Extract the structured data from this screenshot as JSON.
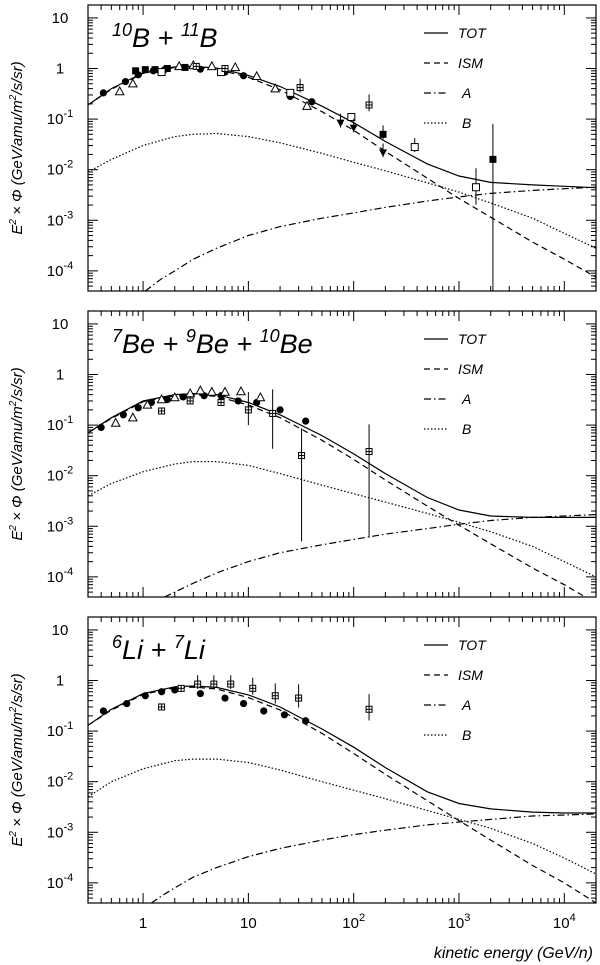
{
  "chart_data": {
    "type": "line",
    "shared_xlabel": "kinetic energy (GeV/n)",
    "xscale": "log",
    "yscale": "log",
    "xlim": [
      0.3,
      20000
    ],
    "ylim": [
      4e-05,
      18
    ],
    "x_ticks": [
      {
        "base": "1",
        "exp": ""
      },
      {
        "base": "10",
        "exp": ""
      },
      {
        "base": "10",
        "exp": "2"
      },
      {
        "base": "10",
        "exp": "3"
      },
      {
        "base": "10",
        "exp": "4"
      }
    ],
    "y_ticks": [
      {
        "base": "10",
        "exp": ""
      },
      {
        "base": "1",
        "exp": ""
      },
      {
        "base": "10",
        "exp": "-1"
      },
      {
        "base": "10",
        "exp": "-2"
      },
      {
        "base": "10",
        "exp": "-3"
      },
      {
        "base": "10",
        "exp": "-4"
      }
    ],
    "ylabel": {
      "pre": "E",
      "sup1": "2",
      "mid": " × Φ (GeV/amu/m",
      "sup2": "2",
      "post": "/s/sr)"
    },
    "legend": [
      "TOT",
      "ISM",
      "A",
      "B"
    ],
    "legend_placement": "top-right",
    "panels": [
      {
        "title": [
          {
            "t": "10",
            "sup": true
          },
          {
            "t": "B + ",
            "sup": false
          },
          {
            "t": "11",
            "sup": true
          },
          {
            "t": "B",
            "sup": false
          }
        ],
        "series": [
          {
            "name": "TOT",
            "x": [
              0.3,
              0.5,
              1,
              2,
              3,
              5,
              10,
              20,
              50,
              100,
              200,
              500,
              1000,
              2000,
              5000,
              10000,
              20000
            ],
            "y": [
              0.19,
              0.4,
              0.82,
              1.08,
              1.1,
              1.02,
              0.73,
              0.44,
              0.18,
              0.085,
              0.036,
              0.013,
              0.0075,
              0.0056,
              0.005,
              0.0047,
              0.0044
            ]
          },
          {
            "name": "ISM",
            "x": [
              0.3,
              0.5,
              1,
              2,
              3,
              5,
              10,
              20,
              50,
              100,
              200,
              500,
              1000,
              2000,
              5000,
              10000,
              20000
            ],
            "y": [
              0.19,
              0.39,
              0.8,
              1.05,
              1.07,
              0.97,
              0.67,
              0.38,
              0.14,
              0.06,
              0.023,
              0.0068,
              0.0027,
              0.00115,
              0.00037,
              0.00017,
              7.5e-05
            ]
          },
          {
            "name": "A",
            "x": [
              1.05,
              1.5,
              2,
              3,
              5,
              10,
              20,
              50,
              100,
              200,
              500,
              1000,
              2000,
              5000,
              10000,
              20000
            ],
            "y": [
              4e-05,
              7e-05,
              0.0001,
              0.00017,
              0.00028,
              0.0005,
              0.00075,
              0.0011,
              0.0014,
              0.0018,
              0.0024,
              0.0029,
              0.0034,
              0.0039,
              0.0042,
              0.0045
            ]
          },
          {
            "name": "B",
            "x": [
              0.3,
              0.5,
              1,
              2,
              3,
              5,
              10,
              20,
              50,
              100,
              200,
              500,
              1000,
              2000,
              5000,
              10000,
              20000
            ],
            "y": [
              0.009,
              0.016,
              0.03,
              0.045,
              0.05,
              0.052,
              0.045,
              0.034,
              0.021,
              0.014,
              0.0095,
              0.0055,
              0.0036,
              0.0022,
              0.0011,
              0.00055,
              0.00028
            ]
          }
        ],
        "data_points": [
          {
            "marker": "filled-circle",
            "x": [
              0.42,
              0.68,
              0.9,
              1.25,
              1.6,
              3.5,
              6,
              9,
              25,
              40
            ],
            "y": [
              0.33,
              0.55,
              0.75,
              0.9,
              0.95,
              0.97,
              0.85,
              0.72,
              0.28,
              0.22
            ],
            "err": [
              0,
              0,
              0,
              0,
              0,
              0,
              0,
              0,
              0,
              0
            ]
          },
          {
            "marker": "open-triangle",
            "x": [
              0.6,
              0.8,
              2.2,
              3.0,
              4.5,
              7.5,
              12,
              18,
              36
            ],
            "y": [
              0.35,
              0.5,
              1.1,
              1.15,
              1.1,
              1.05,
              0.7,
              0.4,
              0.18
            ],
            "err": [
              0,
              0,
              0,
              0,
              0,
              0,
              0,
              0,
              0
            ]
          },
          {
            "marker": "filled-square",
            "x": [
              0.85,
              1.05,
              1.3,
              1.7,
              2.5,
              25,
              190,
              2100
            ],
            "y": [
              0.9,
              0.95,
              0.95,
              1.0,
              1.05,
              0.32,
              0.05,
              0.016
            ],
            "err": [
              0,
              0,
              0,
              0,
              0,
              0,
              0.2,
              1.6
            ]
          },
          {
            "marker": "open-square",
            "x": [
              1.5,
              5.5,
              25,
              95,
              380,
              1450
            ],
            "y": [
              0.85,
              0.85,
              0.33,
              0.11,
              0.028,
              0.0045
            ],
            "err": [
              0,
              0,
              0.05,
              0.05,
              0.2,
              0.55
            ]
          },
          {
            "marker": "filled-triangle-down",
            "x": [
              75,
              100,
              190
            ],
            "y": [
              0.085,
              0.068,
              0.022
            ],
            "err": [
              0.2,
              0.2,
              0.2
            ]
          },
          {
            "marker": "open-cross",
            "x": [
              3.2,
              6,
              31,
              140
            ],
            "y": [
              1.1,
              1.0,
              0.42,
              0.19
            ],
            "err": [
              0,
              0,
              0.2,
              0.25
            ]
          }
        ]
      },
      {
        "title": [
          {
            "t": "7",
            "sup": true
          },
          {
            "t": "Be + ",
            "sup": false
          },
          {
            "t": "9",
            "sup": true
          },
          {
            "t": "Be + ",
            "sup": false
          },
          {
            "t": "10",
            "sup": true
          },
          {
            "t": "Be",
            "sup": false
          }
        ],
        "series": [
          {
            "name": "TOT",
            "x": [
              0.3,
              0.5,
              1,
              2,
              3,
              5,
              10,
              20,
              50,
              100,
              200,
              500,
              1000,
              2000,
              5000,
              10000,
              20000
            ],
            "y": [
              0.07,
              0.14,
              0.3,
              0.4,
              0.42,
              0.4,
              0.28,
              0.16,
              0.062,
              0.027,
              0.011,
              0.0037,
              0.0021,
              0.0016,
              0.0015,
              0.0015,
              0.0015
            ]
          },
          {
            "name": "ISM",
            "x": [
              0.3,
              0.5,
              1,
              2,
              3,
              5,
              10,
              20,
              50,
              100,
              200,
              500,
              1000,
              2000,
              5000,
              10000,
              20000
            ],
            "y": [
              0.07,
              0.135,
              0.29,
              0.38,
              0.4,
              0.37,
              0.25,
              0.14,
              0.05,
              0.021,
              0.0082,
              0.0025,
              0.00105,
              0.00045,
              0.00015,
              7e-05,
              3e-05
            ]
          },
          {
            "name": "A",
            "x": [
              1.6,
              2,
              3,
              5,
              10,
              20,
              50,
              100,
              200,
              500,
              1000,
              2000,
              5000,
              10000,
              20000
            ],
            "y": [
              4e-05,
              5e-05,
              7.5e-05,
              0.00012,
              0.0002,
              0.0003,
              0.00043,
              0.00055,
              0.0007,
              0.0009,
              0.0011,
              0.0013,
              0.0015,
              0.0016,
              0.0017
            ]
          },
          {
            "name": "B",
            "x": [
              0.3,
              0.5,
              1,
              2,
              3,
              5,
              10,
              20,
              50,
              100,
              200,
              500,
              1000,
              2000,
              5000,
              10000,
              20000
            ],
            "y": [
              0.004,
              0.007,
              0.012,
              0.017,
              0.019,
              0.019,
              0.016,
              0.011,
              0.0065,
              0.0044,
              0.003,
              0.0018,
              0.0012,
              0.00078,
              0.0004,
              0.0002,
              0.0001
            ]
          }
        ],
        "data_points": [
          {
            "marker": "filled-circle",
            "x": [
              0.4,
              0.65,
              0.9,
              1.2,
              1.7,
              2.4,
              3.8,
              5.5,
              8,
              12,
              20,
              35
            ],
            "y": [
              0.09,
              0.16,
              0.22,
              0.28,
              0.32,
              0.36,
              0.38,
              0.38,
              0.3,
              0.28,
              0.2,
              0.12
            ],
            "err": [
              0,
              0,
              0,
              0,
              0,
              0,
              0,
              0,
              0,
              0,
              0,
              0
            ]
          },
          {
            "marker": "open-triangle",
            "x": [
              0.55,
              0.8,
              1.1,
              1.5,
              2,
              2.8,
              3.5,
              4.5,
              6,
              8.5,
              13
            ],
            "y": [
              0.11,
              0.14,
              0.25,
              0.32,
              0.35,
              0.42,
              0.48,
              0.45,
              0.45,
              0.46,
              0.35
            ],
            "err": [
              0,
              0,
              0,
              0,
              0,
              0,
              0,
              0,
              0,
              0,
              0
            ]
          },
          {
            "marker": "open-cross",
            "x": [
              1.5,
              2.8,
              5.5,
              10,
              17,
              32,
              140
            ],
            "y": [
              0.19,
              0.3,
              0.28,
              0.2,
              0.17,
              0.025,
              0.03
            ],
            "err": [
              0,
              0,
              0,
              0.5,
              0.8,
              0.98,
              0.98
            ]
          }
        ]
      },
      {
        "title": [
          {
            "t": "6",
            "sup": true
          },
          {
            "t": "Li + ",
            "sup": false
          },
          {
            "t": "7",
            "sup": true
          },
          {
            "t": "Li",
            "sup": false
          }
        ],
        "series": [
          {
            "name": "TOT",
            "x": [
              0.3,
              0.5,
              1,
              2,
              3,
              5,
              10,
              20,
              50,
              100,
              200,
              500,
              1000,
              2000,
              5000,
              10000,
              20000
            ],
            "y": [
              0.13,
              0.27,
              0.55,
              0.75,
              0.78,
              0.73,
              0.52,
              0.3,
              0.11,
              0.048,
              0.019,
              0.0063,
              0.0037,
              0.0029,
              0.0025,
              0.0024,
              0.0024
            ]
          },
          {
            "name": "ISM",
            "x": [
              0.3,
              0.5,
              1,
              2,
              3,
              5,
              10,
              20,
              50,
              100,
              200,
              500,
              1000,
              2000,
              5000,
              10000,
              20000
            ],
            "y": [
              0.13,
              0.26,
              0.53,
              0.72,
              0.74,
              0.68,
              0.46,
              0.26,
              0.09,
              0.036,
              0.014,
              0.0042,
              0.0017,
              0.0007,
              0.00022,
              0.0001,
              4e-05
            ]
          },
          {
            "name": "A",
            "x": [
              1.2,
              1.5,
              2,
              3,
              5,
              10,
              20,
              50,
              100,
              200,
              500,
              1000,
              2000,
              5000,
              10000,
              20000
            ],
            "y": [
              4e-05,
              5.5e-05,
              8e-05,
              0.00013,
              0.0002,
              0.00033,
              0.00048,
              0.0007,
              0.0009,
              0.0011,
              0.0014,
              0.0016,
              0.0018,
              0.0021,
              0.0022,
              0.0023
            ]
          },
          {
            "name": "B",
            "x": [
              0.3,
              0.5,
              1,
              2,
              3,
              5,
              10,
              20,
              50,
              100,
              200,
              500,
              1000,
              2000,
              5000,
              10000,
              20000
            ],
            "y": [
              0.005,
              0.01,
              0.018,
              0.026,
              0.028,
              0.028,
              0.024,
              0.017,
              0.01,
              0.0068,
              0.0046,
              0.0027,
              0.0018,
              0.0012,
              0.0006,
              0.00031,
              0.00015
            ]
          }
        ],
        "data_points": [
          {
            "marker": "filled-circle",
            "x": [
              0.42,
              0.7,
              1.05,
              1.5,
              2,
              3.5,
              6,
              9,
              14,
              22,
              35
            ],
            "y": [
              0.25,
              0.35,
              0.5,
              0.6,
              0.65,
              0.55,
              0.45,
              0.35,
              0.25,
              0.21,
              0.16
            ],
            "err": [
              0,
              0,
              0,
              0,
              0,
              0,
              0,
              0,
              0,
              0,
              0
            ]
          },
          {
            "marker": "open-cross",
            "x": [
              1.5,
              2.3,
              3.3,
              4.7,
              6.8,
              11,
              18,
              30,
              140
            ],
            "y": [
              0.3,
              0.7,
              0.85,
              0.85,
              0.85,
              0.7,
              0.5,
              0.45,
              0.27
            ],
            "err": [
              0,
              0,
              0.2,
              0.2,
              0.2,
              0.25,
              0.3,
              0.35,
              0.4
            ]
          }
        ]
      }
    ]
  }
}
